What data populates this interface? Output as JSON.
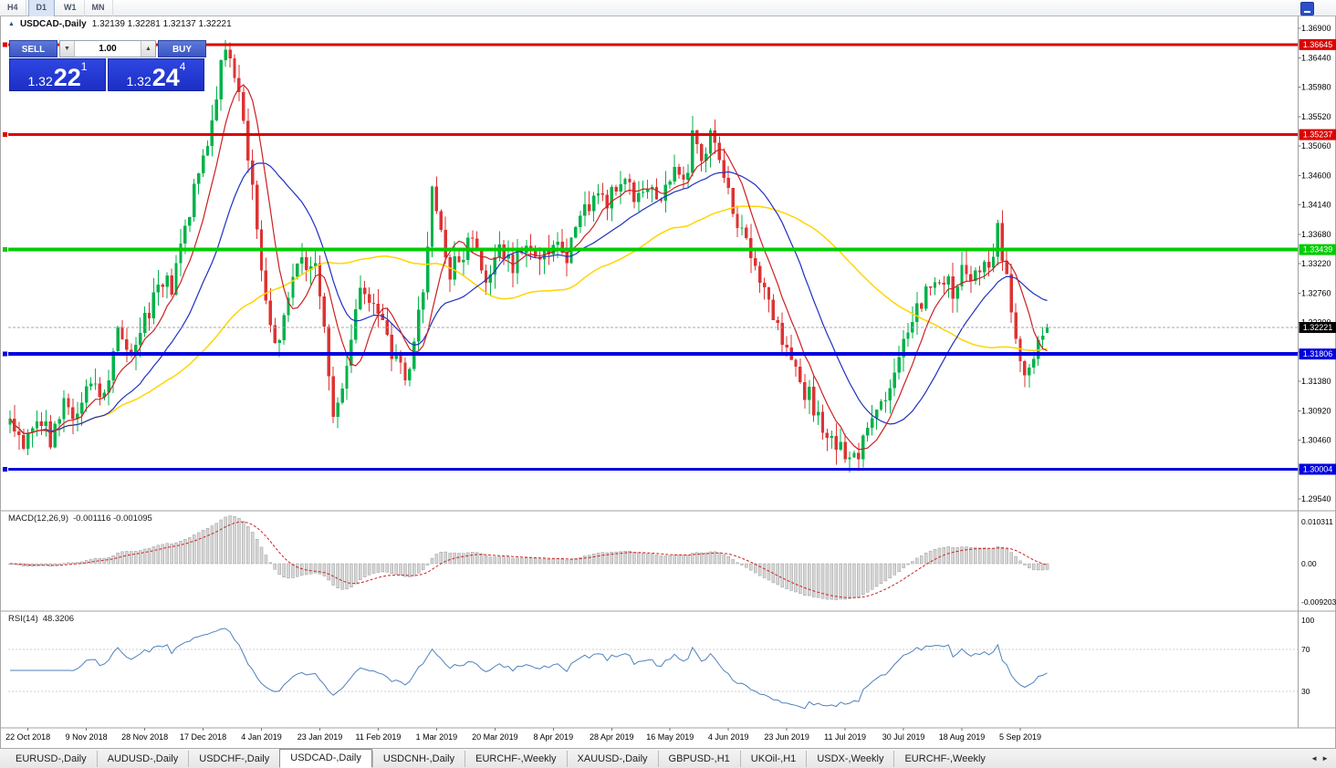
{
  "toolbar": {
    "timeframes": [
      "H4",
      "D1",
      "W1",
      "MN"
    ]
  },
  "icons": {
    "window": "▲",
    "spinner_down": "▼",
    "spinner_up": "▲",
    "tab_left": "◄",
    "tab_right": "►"
  },
  "chart": {
    "title_symbol": "USDCAD-,Daily",
    "title_ohlc": "1.32139 1.32281 1.32137 1.32221"
  },
  "trade_panel": {
    "sell_label": "SELL",
    "buy_label": "BUY",
    "volume": "1.00",
    "sell_price": {
      "base": "1.32",
      "pips": "22",
      "sup": "1"
    },
    "buy_price": {
      "base": "1.32",
      "pips": "24",
      "sup": "4"
    }
  },
  "tabs": {
    "items": [
      "EURUSD-,Daily",
      "AUDUSD-,Daily",
      "USDCHF-,Daily",
      "USDCAD-,Daily",
      "USDCNH-,Daily",
      "EURCHF-,Weekly",
      "XAUUSD-,Daily",
      "GBPUSD-,H1",
      "UKOil-,H1",
      "USDX-,Weekly",
      "EURCHF-,Weekly"
    ],
    "active_index": 3
  },
  "chart_data": {
    "type": "candlestick",
    "symbol": "USDCAD-",
    "timeframe": "Daily",
    "price_axis": {
      "max": 1.369,
      "min": 1.2954,
      "ticks": [
        "1.36900",
        "1.36440",
        "1.35980",
        "1.35520",
        "1.35060",
        "1.34600",
        "1.34140",
        "1.33680",
        "1.33220",
        "1.32760",
        "1.32300",
        "1.31840",
        "1.31380",
        "1.30920",
        "1.30460",
        "1.30000",
        "1.29540"
      ]
    },
    "hlines": [
      {
        "price": 1.36645,
        "label": "1.36645",
        "color": "#dd0000",
        "width": 3
      },
      {
        "price": 1.35237,
        "label": "1.35237",
        "color": "#dd0000",
        "width": 3
      },
      {
        "price": 1.33439,
        "label": "1.33439",
        "color": "#00cc00",
        "width": 4
      },
      {
        "price": 1.31806,
        "label": "1.31806",
        "color": "#0000dd",
        "width": 4
      },
      {
        "price": 1.30004,
        "label": "1.30004",
        "color": "#0000dd",
        "width": 3
      }
    ],
    "current_price": {
      "value": 1.32221,
      "label": "1.32221"
    },
    "last_bar": {
      "open": 1.32139,
      "high": 1.32281,
      "low": 1.32137,
      "close": 1.32221
    },
    "date_labels": [
      "22 Oct 2018",
      "9 Nov 2018",
      "28 Nov 2018",
      "17 Dec 2018",
      "4 Jan 2019",
      "23 Jan 2019",
      "11 Feb 2019",
      "1 Mar 2019",
      "20 Mar 2019",
      "8 Apr 2019",
      "28 Apr 2019",
      "16 May 2019",
      "4 Jun 2019",
      "23 Jun 2019",
      "11 Jul 2019",
      "30 Jul 2019",
      "18 Aug 2019",
      "5 Sep 2019"
    ],
    "bar_count": 232,
    "first_label_bar": 4,
    "bars_per_label": 13,
    "price_path_anchors": [
      [
        0,
        1.307
      ],
      [
        3,
        1.302
      ],
      [
        6,
        1.309
      ],
      [
        9,
        1.305
      ],
      [
        12,
        1.311
      ],
      [
        15,
        1.3085
      ],
      [
        18,
        1.315
      ],
      [
        21,
        1.312
      ],
      [
        24,
        1.323
      ],
      [
        27,
        1.319
      ],
      [
        30,
        1.323
      ],
      [
        33,
        1.33
      ],
      [
        36,
        1.328
      ],
      [
        39,
        1.339
      ],
      [
        42,
        1.345
      ],
      [
        45,
        1.356
      ],
      [
        48,
        1.366
      ],
      [
        50,
        1.362
      ],
      [
        52,
        1.356
      ],
      [
        54,
        1.343
      ],
      [
        56,
        1.332
      ],
      [
        58,
        1.323
      ],
      [
        60,
        1.319
      ],
      [
        62,
        1.327
      ],
      [
        64,
        1.333
      ],
      [
        66,
        1.33
      ],
      [
        68,
        1.333
      ],
      [
        70,
        1.321
      ],
      [
        72,
        1.3095
      ],
      [
        74,
        1.313
      ],
      [
        76,
        1.321
      ],
      [
        78,
        1.33
      ],
      [
        80,
        1.327
      ],
      [
        82,
        1.324
      ],
      [
        84,
        1.321
      ],
      [
        86,
        1.317
      ],
      [
        88,
        1.3135
      ],
      [
        90,
        1.321
      ],
      [
        92,
        1.328
      ],
      [
        94,
        1.3445
      ],
      [
        96,
        1.336
      ],
      [
        98,
        1.331
      ],
      [
        100,
        1.333
      ],
      [
        103,
        1.3355
      ],
      [
        106,
        1.33
      ],
      [
        109,
        1.334
      ],
      [
        112,
        1.3315
      ],
      [
        115,
        1.3345
      ],
      [
        118,
        1.3325
      ],
      [
        121,
        1.3355
      ],
      [
        124,
        1.3335
      ],
      [
        127,
        1.3395
      ],
      [
        130,
        1.3435
      ],
      [
        133,
        1.3415
      ],
      [
        136,
        1.3455
      ],
      [
        139,
        1.3435
      ],
      [
        142,
        1.3445
      ],
      [
        145,
        1.3425
      ],
      [
        148,
        1.3465
      ],
      [
        150,
        1.3445
      ],
      [
        152,
        1.3515
      ],
      [
        154,
        1.3485
      ],
      [
        156,
        1.352
      ],
      [
        158,
        1.3485
      ],
      [
        160,
        1.343
      ],
      [
        162,
        1.3385
      ],
      [
        164,
        1.3345
      ],
      [
        166,
        1.3315
      ],
      [
        168,
        1.3285
      ],
      [
        171,
        1.3225
      ],
      [
        174,
        1.3175
      ],
      [
        177,
        1.3125
      ],
      [
        180,
        1.3085
      ],
      [
        183,
        1.305
      ],
      [
        186,
        1.303
      ],
      [
        189,
        1.3025
      ],
      [
        192,
        1.3075
      ],
      [
        195,
        1.3115
      ],
      [
        198,
        1.319
      ],
      [
        201,
        1.3245
      ],
      [
        204,
        1.3275
      ],
      [
        207,
        1.33
      ],
      [
        210,
        1.3285
      ],
      [
        213,
        1.331
      ],
      [
        216,
        1.3305
      ],
      [
        218,
        1.333
      ],
      [
        220,
        1.337
      ],
      [
        222,
        1.329
      ],
      [
        224,
        1.3215
      ],
      [
        226,
        1.315
      ],
      [
        228,
        1.3185
      ],
      [
        230,
        1.3205
      ],
      [
        231,
        1.3214
      ]
    ],
    "moving_averages": [
      {
        "period": 55,
        "color": "#ffd500",
        "width": 1.5
      },
      {
        "period": 21,
        "color": "#2030c0",
        "width": 1.2
      },
      {
        "period": 8,
        "color": "#cc2020",
        "width": 1.2
      }
    ],
    "macd": {
      "label": "MACD(12,26,9)",
      "values": "-0.001116 -0.001095",
      "fast": 12,
      "slow": 26,
      "signal": 9,
      "axis_ticks": [
        "0.010311",
        "0.00",
        "-0.009203"
      ],
      "axis_max": 0.010311,
      "axis_min": -0.009203
    },
    "rsi": {
      "label": "RSI(14)",
      "value": "48.3206",
      "period": 14,
      "axis_ticks": [
        "100",
        "70",
        "30"
      ],
      "levels": [
        70,
        30
      ]
    },
    "colors": {
      "bull": "#00b24a",
      "bear": "#dd3333",
      "macd_hist_fill": "#d6d6d6",
      "macd_hist_stroke": "#8a8a8a",
      "macd_signal": "#cc2222",
      "rsi_line": "#4f81bd",
      "bid_line": "#aaaaaa",
      "separator": "#a0a0a0",
      "axis_text": "#000000"
    }
  }
}
